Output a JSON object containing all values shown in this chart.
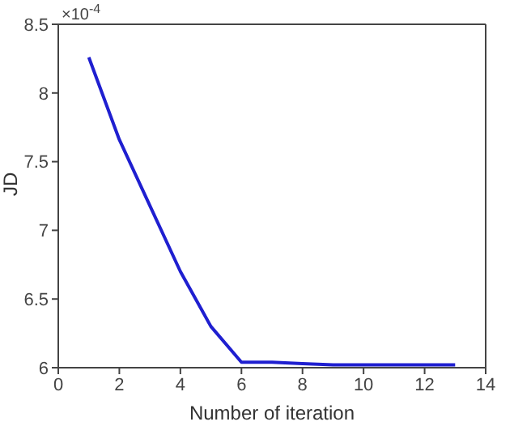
{
  "chart_data": {
    "type": "line",
    "xlabel": "Number of iteration",
    "ylabel": "JD",
    "annotations": [
      "×10$^{-4}$"
    ],
    "x": [
      1,
      2,
      3,
      4,
      5,
      6,
      7,
      8,
      9,
      10,
      11,
      12,
      13
    ],
    "series": [
      {
        "color": "#1f1fd0",
        "values": [
          8.26,
          7.66,
          7.18,
          6.7,
          6.3,
          6.04,
          6.04,
          6.03,
          6.02,
          6.02,
          6.02,
          6.02,
          6.02
        ]
      }
    ],
    "xlim": [
      0,
      14
    ],
    "xticks": [
      0,
      2,
      4,
      6,
      8,
      10,
      12,
      14
    ],
    "ylim": [
      6,
      8.5
    ],
    "yticks": [
      6,
      6.5,
      7,
      7.5,
      8,
      8.5
    ],
    "grid": false,
    "marker": "none",
    "line_style": "solid"
  }
}
